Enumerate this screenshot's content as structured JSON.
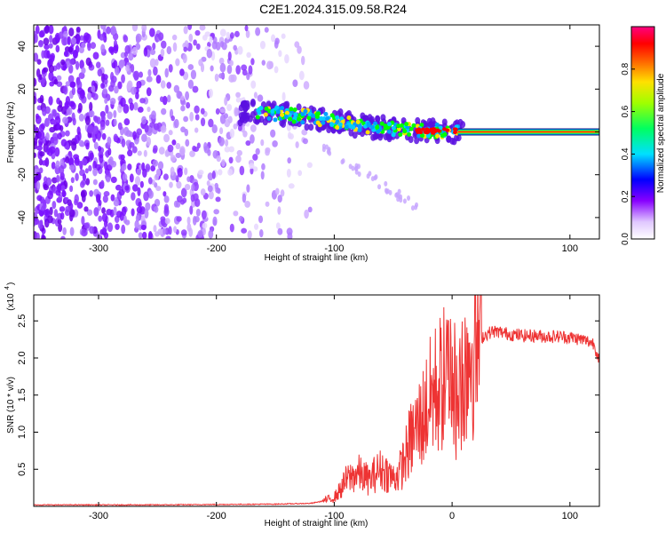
{
  "page_title": "C2E1.2024.315.09.58.R24",
  "colors": {
    "snr_line": "#ee3333",
    "spectrogram_dots": "#7a00ff",
    "ridge_hot": "#ff0000",
    "ridge_warm": "#ffe000",
    "ridge_mid": "#00ff00",
    "ridge_cool": "#00d0ff"
  },
  "chart_data": [
    {
      "type": "heatmap",
      "title": "",
      "xlabel": "Height of straight line (km)",
      "ylabel": "Frequency (Hz)",
      "xlim": [
        -355,
        125
      ],
      "ylim": [
        -50,
        50
      ],
      "x_ticks": [
        -300,
        -200,
        -100,
        100
      ],
      "x_tick_labels": [
        "-300",
        "-200",
        "-100",
        "100"
      ],
      "y_ticks": [
        -40,
        -20,
        0,
        20,
        40
      ],
      "y_tick_labels": [
        "-40",
        "-20",
        "0",
        "20",
        "40"
      ],
      "colorbar": {
        "label": "Normalized spectral amplitude",
        "range": [
          0,
          1
        ],
        "ticks": [
          0.0,
          0.2,
          0.4,
          0.6,
          0.8
        ],
        "tick_labels": [
          "0.0",
          "0.2",
          "0.4",
          "0.6",
          "0.8"
        ],
        "palette": "rainbow (white-violet-blue-cyan-green-yellow-red-magenta)"
      },
      "ridge": {
        "description": "dominant frequency vs height",
        "x": [
          -180,
          -160,
          -140,
          -120,
          -100,
          -80,
          -60,
          -40,
          -20,
          0,
          20,
          60,
          100,
          125
        ],
        "y": [
          9,
          9,
          8,
          7,
          5,
          3,
          2,
          1,
          0.5,
          0.5,
          0,
          0,
          0,
          0
        ]
      },
      "noise_region_x": [
        -355,
        -140
      ]
    },
    {
      "type": "line",
      "title": "",
      "xlabel": "Height of straight line (km)",
      "ylabel": "SNR (10 * v/v)",
      "y_multiplier_label": "(x10",
      "y_multiplier_exp": "4",
      "xlim": [
        -355,
        125
      ],
      "ylim": [
        0,
        28500
      ],
      "x_ticks": [
        -300,
        -200,
        -100,
        0,
        100
      ],
      "x_tick_labels": [
        "-300",
        "-200",
        "-100",
        "0",
        "100"
      ],
      "y_ticks": [
        5000,
        10000,
        15000,
        20000,
        25000
      ],
      "y_tick_labels": [
        "0.5",
        "1.0",
        "1.5",
        "2.0",
        "2.5"
      ],
      "series": [
        {
          "x": [
            -355,
            -300,
            -250,
            -200,
            -150,
            -120,
            -110,
            -100,
            -95,
            -90,
            -85,
            -80,
            -75,
            -70,
            -65,
            -60,
            -55,
            -50,
            -45,
            -40,
            -35,
            -30,
            -25,
            -20,
            -15,
            -10,
            -5,
            0,
            5,
            10,
            15,
            20,
            25,
            30,
            35,
            40,
            50,
            60,
            70,
            80,
            90,
            100,
            110,
            120,
            125
          ],
          "y": [
            200,
            200,
            200,
            250,
            300,
            400,
            700,
            1200,
            2200,
            3500,
            4000,
            4500,
            4000,
            3500,
            4500,
            5000,
            4500,
            3800,
            4500,
            6500,
            9000,
            10500,
            12000,
            14000,
            15500,
            16500,
            17500,
            18500,
            13000,
            19000,
            21000,
            22000,
            22800,
            23300,
            23600,
            23500,
            23200,
            23000,
            23000,
            22900,
            22900,
            22800,
            22500,
            22000,
            19800
          ]
        }
      ]
    }
  ]
}
